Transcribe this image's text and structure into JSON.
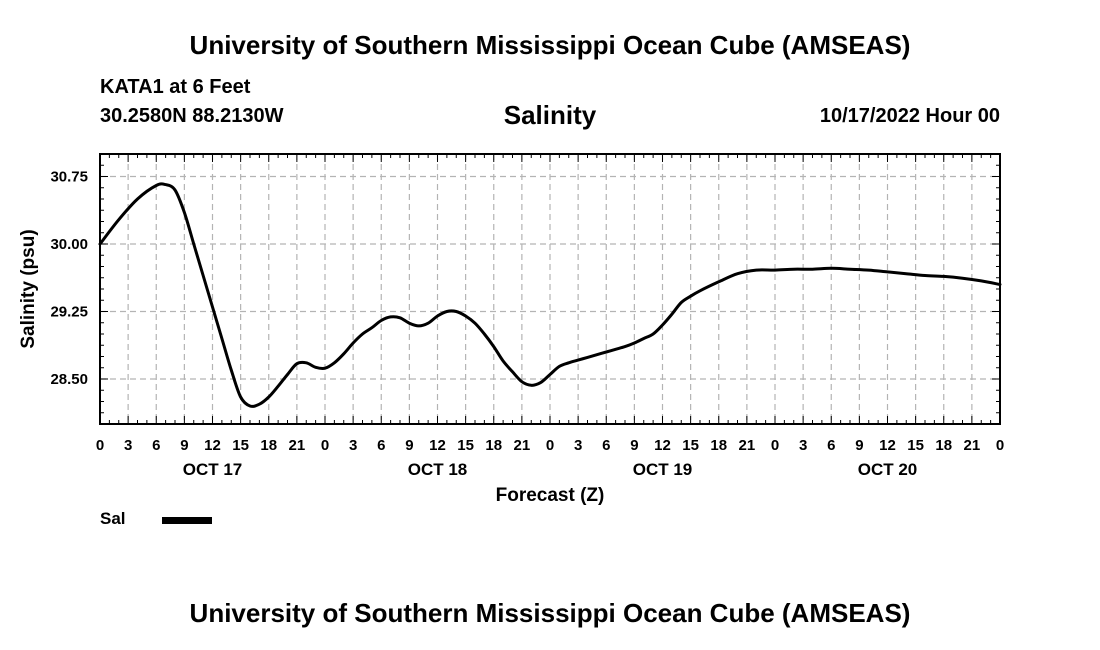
{
  "header": {
    "title": "University of Southern Mississippi Ocean Cube (AMSEAS)",
    "station": "KATA1 at 6 Feet",
    "coords": "30.2580N  88.2130W",
    "chart_title": "Salinity",
    "datetime": "10/17/2022 Hour 00"
  },
  "footer": {
    "title": "University of Southern Mississippi Ocean Cube (AMSEAS)"
  },
  "legend": {
    "label": "Sal"
  },
  "colors": {
    "line": "#000000",
    "grid": "#b4b4b4"
  },
  "chart_data": {
    "type": "line",
    "title": "Salinity",
    "xlabel": "Forecast (Z)",
    "ylabel": "Salinity (psu)",
    "xlim": [
      0,
      96
    ],
    "ylim": [
      28.0,
      31.0
    ],
    "y_ticks": [
      28.5,
      29.25,
      30.0,
      30.75
    ],
    "y_tick_labels": [
      "28.50",
      "29.25",
      "30.00",
      "30.75"
    ],
    "x_ticks": [
      0,
      3,
      6,
      9,
      12,
      15,
      18,
      21,
      24,
      27,
      30,
      33,
      36,
      39,
      42,
      45,
      48,
      51,
      54,
      57,
      60,
      63,
      66,
      69,
      72,
      75,
      78,
      81,
      84,
      87,
      90,
      93,
      96
    ],
    "x_tick_labels": [
      "0",
      "3",
      "6",
      "9",
      "12",
      "15",
      "18",
      "21",
      "0",
      "3",
      "6",
      "9",
      "12",
      "15",
      "18",
      "21",
      "0",
      "3",
      "6",
      "9",
      "12",
      "15",
      "18",
      "21",
      "0",
      "3",
      "6",
      "9",
      "12",
      "15",
      "18",
      "21",
      "0"
    ],
    "day_labels": [
      {
        "label": "OCT 17",
        "x": 12
      },
      {
        "label": "OCT 18",
        "x": 36
      },
      {
        "label": "OCT 19",
        "x": 60
      },
      {
        "label": "OCT 20",
        "x": 84
      }
    ],
    "grid": true,
    "legend": "bottom-left",
    "series": [
      {
        "name": "Sal",
        "x": [
          0,
          2,
          4,
          6,
          7,
          8,
          9,
          10,
          11,
          12,
          13,
          14,
          15,
          16,
          17,
          18,
          19,
          20,
          21,
          22,
          23,
          24,
          25,
          26,
          27,
          28,
          29,
          30,
          31,
          32,
          33,
          34,
          35,
          36,
          37,
          38,
          39,
          40,
          41,
          42,
          43,
          44,
          45,
          46,
          47,
          48,
          49,
          50,
          51,
          52,
          53,
          54,
          55,
          56,
          57,
          58,
          59,
          60,
          61,
          62,
          63,
          64,
          66,
          68,
          70,
          72,
          74,
          76,
          78,
          80,
          82,
          84,
          86,
          88,
          90,
          92,
          94,
          96
        ],
        "values": [
          30.0,
          30.27,
          30.5,
          30.65,
          30.66,
          30.6,
          30.35,
          30.0,
          29.65,
          29.3,
          28.95,
          28.6,
          28.3,
          28.2,
          28.22,
          28.3,
          28.42,
          28.55,
          28.67,
          28.68,
          28.63,
          28.62,
          28.68,
          28.78,
          28.9,
          29.0,
          29.07,
          29.15,
          29.19,
          29.18,
          29.12,
          29.09,
          29.12,
          29.2,
          29.25,
          29.25,
          29.2,
          29.12,
          29.0,
          28.86,
          28.7,
          28.58,
          28.47,
          28.43,
          28.46,
          28.55,
          28.64,
          28.68,
          28.71,
          28.74,
          28.77,
          28.8,
          28.83,
          28.86,
          28.9,
          28.95,
          29.0,
          29.1,
          29.22,
          29.35,
          29.42,
          29.48,
          29.58,
          29.67,
          29.71,
          29.71,
          29.72,
          29.72,
          29.73,
          29.72,
          29.71,
          29.69,
          29.67,
          29.65,
          29.64,
          29.62,
          29.59,
          29.55
        ]
      }
    ]
  }
}
